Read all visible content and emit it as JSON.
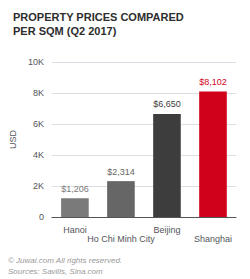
{
  "chart_data": {
    "type": "bar",
    "title": "PROPERTY PRICES COMPARED",
    "subtitle": "PER SQM (Q2 2017)",
    "categories": [
      "Hanoi",
      "Ho Chi Minh City",
      "Beijing",
      "Shanghai"
    ],
    "values": [
      1206,
      2314,
      6650,
      8102
    ],
    "value_labels": [
      "$1,206",
      "$2,314",
      "$6,650",
      "$8,102"
    ],
    "data_labels": true,
    "colors": [
      "#7a7a7a",
      "#666666",
      "#3d3d3d",
      "#d0021b"
    ],
    "ylabel": "USD",
    "ylim": [
      0,
      10000
    ],
    "yticks": [
      0,
      {
        "value": 2000,
        "label": "2K"
      },
      {
        "value": 4000,
        "label": "4K"
      },
      {
        "value": 6000,
        "label": "6K"
      },
      {
        "value": 8000,
        "label": "8K"
      },
      {
        "value": 10000,
        "label": "10K"
      }
    ],
    "grid": true,
    "annotations": [
      "© Juwai.com All rights reserved.",
      "Sources: Savills, Sina.com"
    ]
  }
}
